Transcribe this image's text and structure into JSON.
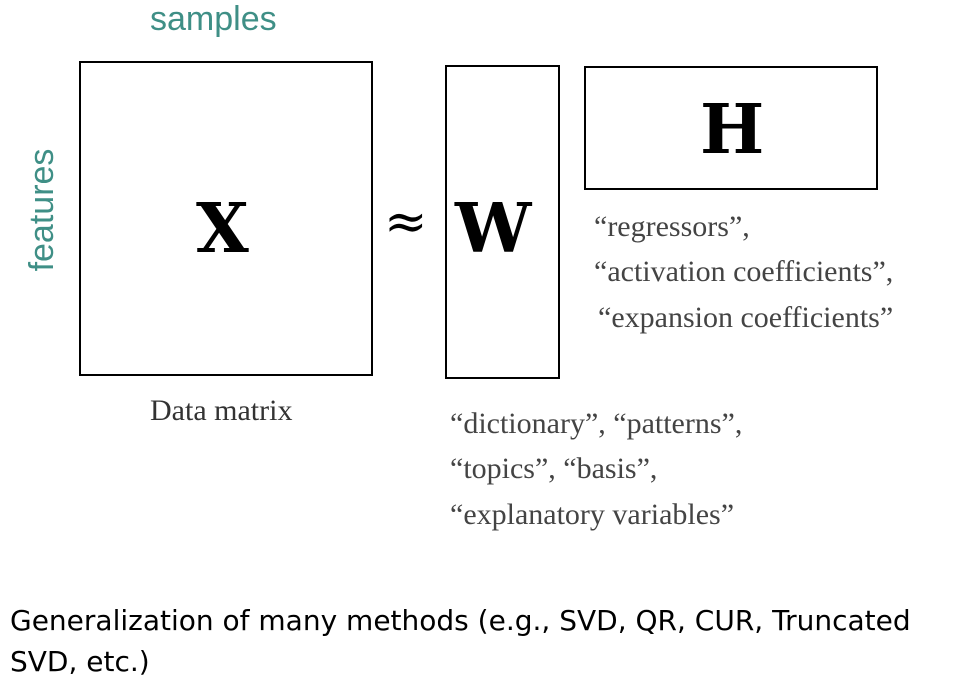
{
  "labels": {
    "samples": "samples",
    "features": "features",
    "approx_symbol": "≈"
  },
  "matrices": {
    "x_letter": "X",
    "w_letter": "W",
    "h_letter": "H",
    "x_caption": "Data matrix"
  },
  "h_annotations": [
    "“regressors”,",
    "“activation coefficients”,",
    "“expansion coefficients”"
  ],
  "w_annotations": [
    "“dictionary”, “patterns”,",
    "“topics”, “basis”,",
    "“explanatory variables”"
  ],
  "caption": {
    "line1": "Generalization of many methods (e.g., SVD, QR, CUR, Truncated",
    "line2": "SVD, etc.)"
  },
  "colors": {
    "label_teal": "#3f8f86",
    "annotation_gray": "#444444"
  }
}
